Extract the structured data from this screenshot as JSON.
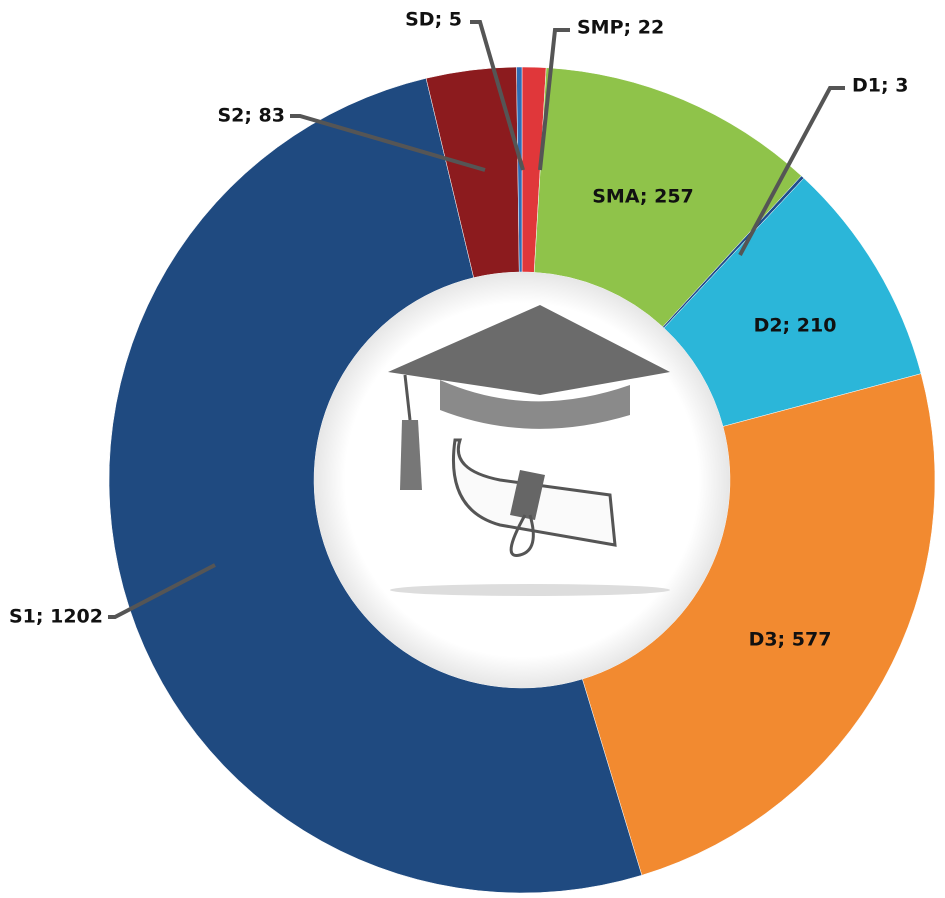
{
  "chart_data": {
    "type": "donut",
    "value_labels": [
      "SMP; 22",
      "SMA; 257",
      "D1; 3",
      "D2; 210",
      "D3; 577",
      "S1; 1202",
      "S2; 83",
      "SD; 5"
    ],
    "values": [
      22,
      257,
      3,
      210,
      577,
      1202,
      83,
      5
    ],
    "colors": [
      "#e0373a",
      "#8fc34a",
      "#1f4e8c",
      "#2bb6d9",
      "#f28a30",
      "#1f4a80",
      "#8c1b1e",
      "#2f6db5"
    ]
  }
}
